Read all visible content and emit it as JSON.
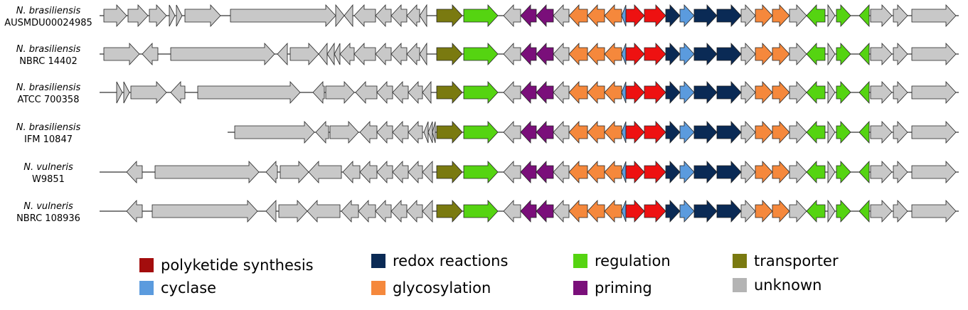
{
  "colors": {
    "polyketide synthesis": "#ee1111",
    "polyketide synthesis legend": "#a30d0d",
    "cyclase": "#5b9bde",
    "redox reactions": "#0a2a55",
    "glycosylation": "#f5883c",
    "regulation": "#55d411",
    "priming": "#7a0f7a",
    "transporter": "#7a7a10",
    "unknown": "#c8c8c8",
    "unknown legend": "#b4b4b4"
  },
  "legend": [
    {
      "key": "polyketide synthesis",
      "label": "polyketide synthesis"
    },
    {
      "key": "cyclase",
      "label": "cyclase"
    },
    {
      "key": "redox reactions",
      "label": "redox reactions"
    },
    {
      "key": "glycosylation",
      "label": "glycosylation"
    },
    {
      "key": "regulation",
      "label": "regulation"
    },
    {
      "key": "priming",
      "label": "priming"
    },
    {
      "key": "transporter",
      "label": "transporter"
    },
    {
      "key": "unknown",
      "label": "unknown"
    }
  ],
  "strains": [
    {
      "species": "N. brasiliensis",
      "strain": "AUSMDU00024985"
    },
    {
      "species": "N. brasiliensis",
      "strain": "NBRC 14402"
    },
    {
      "species": "N. brasiliensis",
      "strain": "ATCC 700358"
    },
    {
      "species": "N. brasiliensis",
      "strain": "IFM 10847"
    },
    {
      "species": "N. vulneris",
      "strain": "W9851"
    },
    {
      "species": "N. vulneris",
      "strain": "NBRC 108936"
    }
  ]
}
